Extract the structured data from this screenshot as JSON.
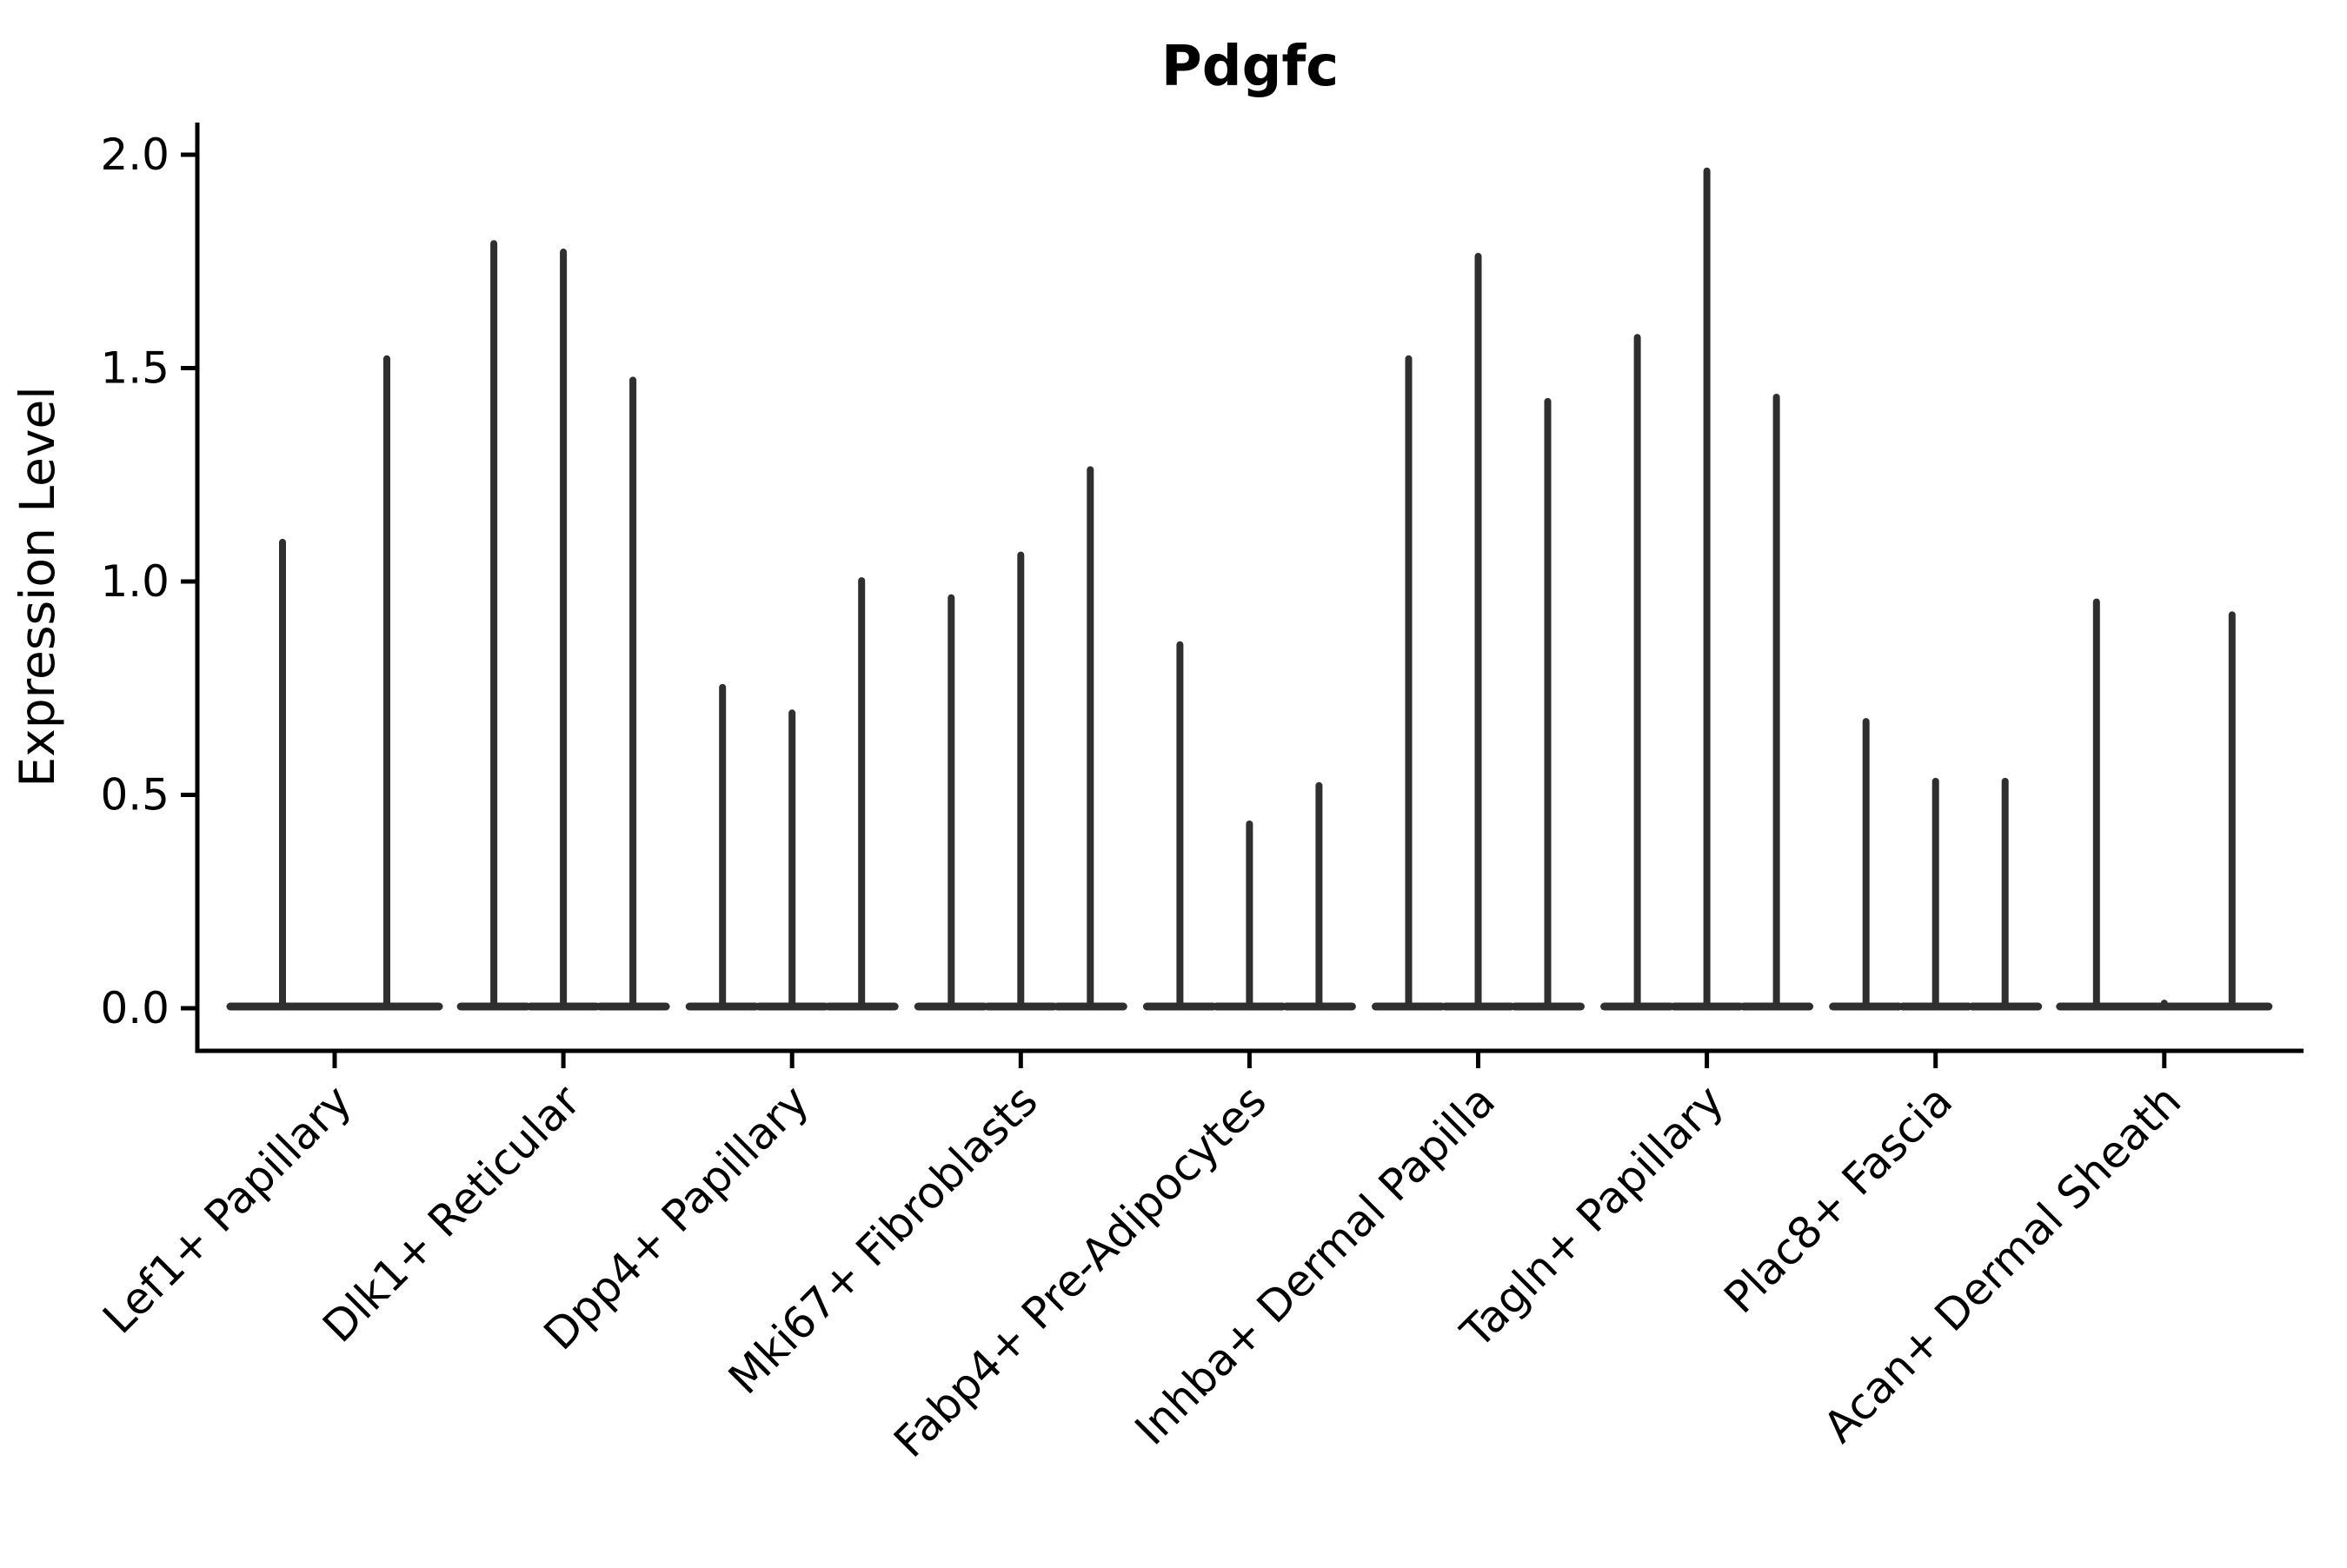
{
  "title": "Pdgfc",
  "y_axis": {
    "label": "Expression Level",
    "tick_labels": [
      "0.0",
      "0.5",
      "1.0",
      "1.5",
      "2.0"
    ]
  },
  "chart_data": {
    "type": "violin",
    "title": "Pdgfc",
    "xlabel": "",
    "ylabel": "Expression Level",
    "ylim": [
      0,
      2.05
    ],
    "yticks": [
      0.0,
      0.5,
      1.0,
      1.5,
      2.0
    ],
    "grid": false,
    "legend": false,
    "x_tick_rotation_deg": 45,
    "violin_color": "#2f2f2f",
    "axis_color": "#000000",
    "background_color": "#ffffff",
    "categories": [
      "Lef1+ Papillary",
      "Dlk1+ Reticular",
      "Dpp4+ Papillary",
      "Mki67+ Fibroblasts",
      "Fabp4+ Pre-Adipocytes",
      "Inhba+ Dermal Papilla",
      "Tagln+ Papillary",
      "Plac8+ Fascia",
      "Acan+ Dermal Sheath"
    ],
    "groups": [
      {
        "category": "Lef1+ Papillary",
        "violin_max_values": [
          1.1,
          1.53
        ],
        "offsets": [
          -60,
          60
        ],
        "base_half_width": 60
      },
      {
        "category": "Dlk1+ Reticular",
        "violin_max_values": [
          1.8,
          1.78,
          1.48
        ],
        "offsets": [
          -80,
          0,
          80
        ],
        "base_half_width": 38
      },
      {
        "category": "Dpp4+ Papillary",
        "violin_max_values": [
          0.76,
          0.7,
          1.01
        ],
        "offsets": [
          -80,
          0,
          80
        ],
        "base_half_width": 38
      },
      {
        "category": "Mki67+ Fibroblasts",
        "violin_max_values": [
          0.97,
          1.07,
          1.27
        ],
        "offsets": [
          -80,
          0,
          80
        ],
        "base_half_width": 38
      },
      {
        "category": "Fabp4+ Pre-Adipocytes",
        "violin_max_values": [
          0.86,
          0.44,
          0.53
        ],
        "offsets": [
          -80,
          0,
          80
        ],
        "base_half_width": 38
      },
      {
        "category": "Inhba+ Dermal Papilla",
        "violin_max_values": [
          1.53,
          1.77,
          1.43
        ],
        "offsets": [
          -80,
          0,
          80
        ],
        "base_half_width": 38
      },
      {
        "category": "Tagln+ Papillary",
        "violin_max_values": [
          1.58,
          1.97,
          1.44
        ],
        "offsets": [
          -80,
          0,
          80
        ],
        "base_half_width": 38
      },
      {
        "category": "Plac8+ Fascia",
        "violin_max_values": [
          0.68,
          0.54,
          0.54
        ],
        "offsets": [
          -80,
          0,
          80
        ],
        "base_half_width": 38
      },
      {
        "category": "Acan+ Dermal Sheath",
        "violin_max_values": [
          0.96,
          0.02,
          0.93
        ],
        "offsets": [
          -78,
          0,
          78
        ],
        "base_half_width": 42
      }
    ]
  }
}
